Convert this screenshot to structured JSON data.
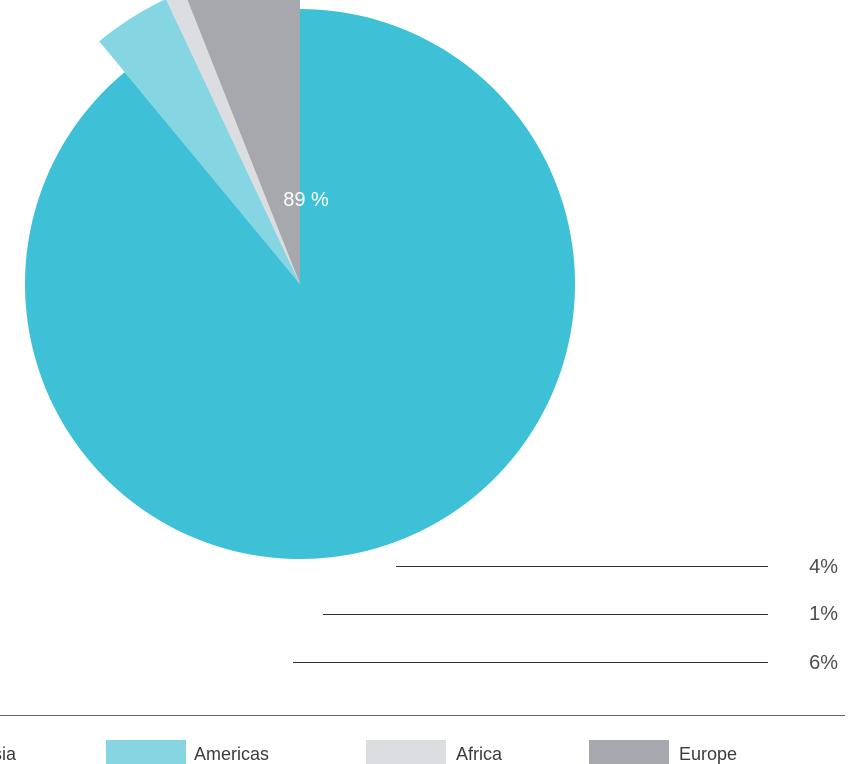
{
  "chart_data": {
    "type": "pie",
    "title": "",
    "categories": [
      "Asia",
      "Americas",
      "Africa",
      "Europe"
    ],
    "values": [
      89,
      4,
      1,
      6
    ],
    "data_labels": [
      "89 %",
      "4%",
      "1%",
      "6%"
    ],
    "colors": [
      "#3ec0d6",
      "#86d5e3",
      "#dcdde0",
      "#a6a8ad"
    ],
    "legend_position": "bottom",
    "exploded": [
      "Americas",
      "Africa",
      "Europe"
    ],
    "start_angle_deg": 0,
    "direction": "clockwise"
  }
}
